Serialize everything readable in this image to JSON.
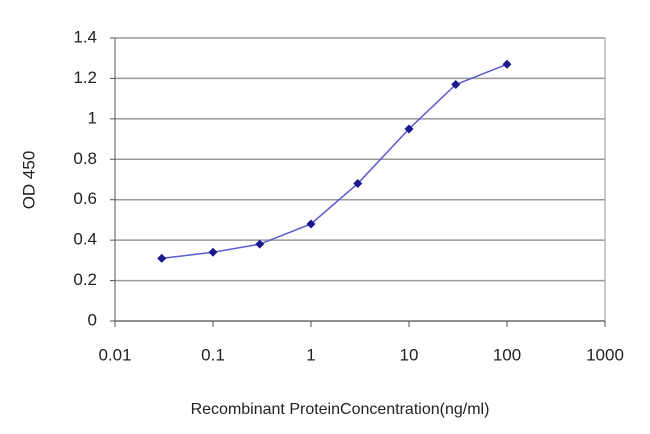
{
  "chart_data": {
    "type": "line",
    "x_label": "Recombinant ProteinConcentration(ng/ml)",
    "y_label": "OD 450",
    "x": [
      0.03,
      0.1,
      0.3,
      1,
      3,
      10,
      30,
      100
    ],
    "series": [
      {
        "color": "#1a1a8c",
        "line_color": "#5b5bd0",
        "values": [
          0.31,
          0.34,
          0.38,
          0.48,
          0.68,
          0.95,
          1.17,
          1.27
        ]
      }
    ],
    "xlim": [
      0.01,
      1000
    ],
    "xticks": [
      0.01,
      0.1,
      1,
      10,
      100,
      1000
    ],
    "x_log": true,
    "ylim": [
      0,
      1.4
    ],
    "yticks": [
      0,
      0.2,
      0.4,
      0.6,
      0.8,
      1,
      1.2,
      1.4
    ],
    "grid": true
  }
}
